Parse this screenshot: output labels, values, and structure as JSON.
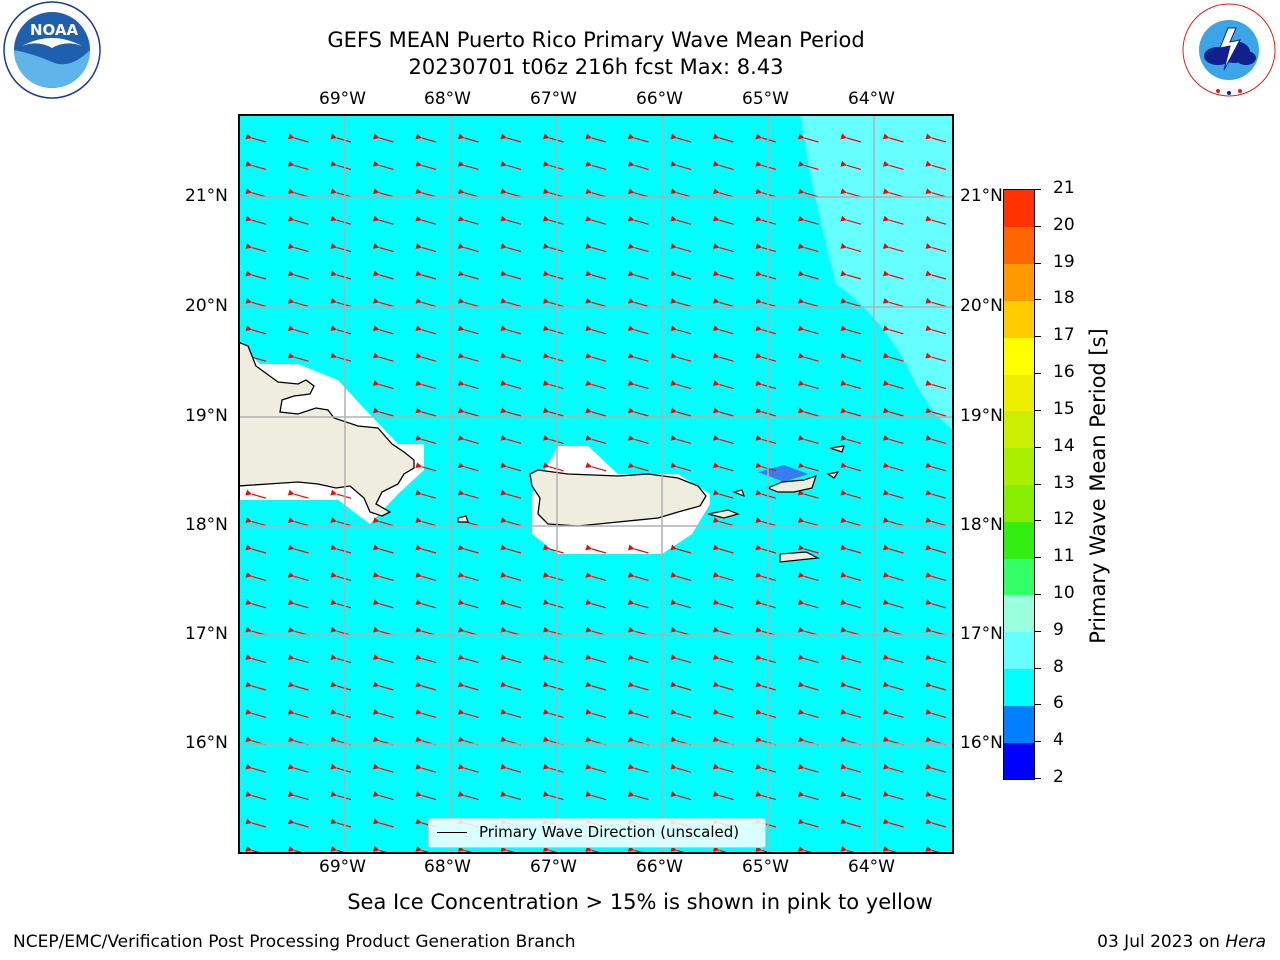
{
  "title": {
    "line1": "GEFS MEAN Puerto Rico Primary Wave Mean Period",
    "line2": "20230701 t06z 216h fcst   Max: 8.43"
  },
  "logos": {
    "left": {
      "name": "noaa-logo",
      "text": "NOAA",
      "ring_text": "NATIONAL OCEANIC AND ATMOSPHERIC ADMINISTRATION · U.S. DEPARTMENT OF COMMERCE"
    },
    "right": {
      "name": "nws-logo",
      "ring_text": "NATIONAL WEATHER SERVICE"
    }
  },
  "map": {
    "region": "Puerto Rico",
    "lon_ticks": [
      "69°W",
      "68°W",
      "67°W",
      "66°W",
      "65°W",
      "64°W"
    ],
    "lat_ticks": [
      "21°N",
      "20°N",
      "19°N",
      "18°N",
      "17°N",
      "16°N"
    ],
    "ocean_color": "#00ffff",
    "light_region_color": "#66ffff",
    "land_color": "#efedde",
    "arrow_color": "#ff0000",
    "grid_color": "#b0b0b0",
    "dominant_period_s": 7,
    "max_period_s": 8.43,
    "wave_direction": "from east-south-east toward west",
    "legend": "Primary Wave Direction (unscaled)"
  },
  "colorbar": {
    "label": "Primary Wave Mean Period [s]",
    "ticks": [
      "2",
      "4",
      "6",
      "8",
      "9",
      "10",
      "11",
      "12",
      "13",
      "14",
      "15",
      "16",
      "17",
      "18",
      "19",
      "20",
      "21"
    ],
    "colors": [
      "#0000ff",
      "#0080ff",
      "#00ffff",
      "#66ffff",
      "#99ffdd",
      "#33ff66",
      "#33ee11",
      "#88ee00",
      "#aaee00",
      "#ccee00",
      "#eeee00",
      "#ffff00",
      "#ffcc00",
      "#ff9900",
      "#ff6600",
      "#ff3300",
      "#ff0000"
    ]
  },
  "caption": "Sea Ice Concentration > 15% is shown in pink to yellow",
  "footer": {
    "left": "NCEP/EMC/Verification Post Processing Product Generation Branch",
    "right_date": "03 Jul 2023 on ",
    "right_host": "Hera"
  }
}
